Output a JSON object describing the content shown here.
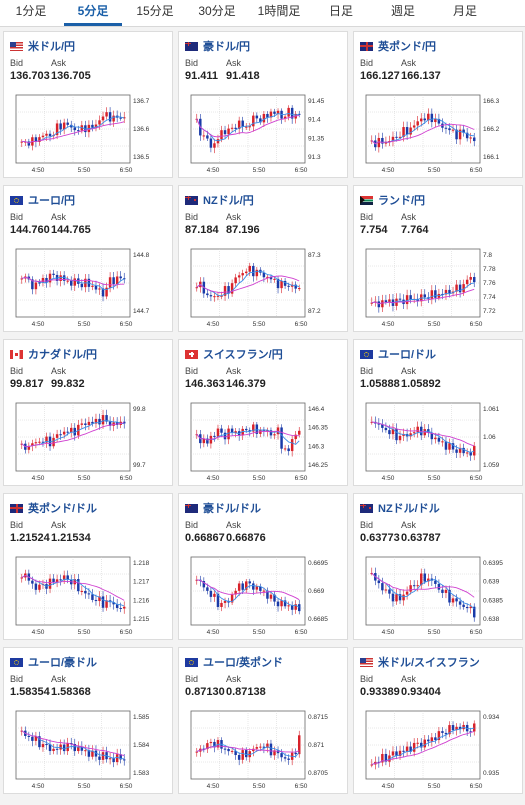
{
  "tabs": [
    {
      "label": "1分足",
      "active": false
    },
    {
      "label": "5分足",
      "active": true
    },
    {
      "label": "15分足",
      "active": false
    },
    {
      "label": "30分足",
      "active": false
    },
    {
      "label": "1時間足",
      "active": false
    },
    {
      "label": "日足",
      "active": false
    },
    {
      "label": "週足",
      "active": false
    },
    {
      "label": "月足",
      "active": false
    }
  ],
  "labels": {
    "bid": "Bid",
    "ask": "Ask"
  },
  "colors": {
    "tab_active": "#1a5fa8",
    "pair_text": "#1f4e96",
    "candle_up": "#d8222a",
    "candle_down": "#1a3aa8",
    "ma_short": "#3a8ee8",
    "ma_long": "#d040d0"
  },
  "cards": [
    {
      "pair": "米ドル/円",
      "flag": "us",
      "bid": "136.703",
      "ask": "136.705",
      "xticks": [
        "4:50",
        "5:50",
        "6:50"
      ],
      "yticks": [
        "136.7",
        "136.6",
        "136.5"
      ],
      "chart_data": {
        "type": "candlestick",
        "trend": [
          0.25,
          0.3,
          0.28,
          0.35,
          0.4,
          0.38,
          0.45,
          0.55,
          0.6,
          0.52,
          0.5,
          0.48,
          0.55,
          0.5,
          0.62,
          0.7,
          0.75,
          0.65,
          0.72,
          0.68
        ],
        "ylim": [
          136.45,
          136.75
        ]
      }
    },
    {
      "pair": "豪ドル/円",
      "flag": "au",
      "bid": "91.411",
      "ask": "91.418",
      "xticks": [
        "4:50",
        "5:50",
        "6:50"
      ],
      "yticks": [
        "91.45",
        "91.4",
        "91.35",
        "91.3"
      ],
      "chart_data": {
        "type": "candlestick",
        "trend": [
          0.6,
          0.4,
          0.3,
          0.2,
          0.35,
          0.5,
          0.45,
          0.55,
          0.6,
          0.5,
          0.62,
          0.7,
          0.65,
          0.72,
          0.8,
          0.75,
          0.7,
          0.78,
          0.72,
          0.75
        ],
        "ylim": [
          91.28,
          91.47
        ]
      }
    },
    {
      "pair": "英ポンド/円",
      "flag": "gb",
      "bid": "166.127",
      "ask": "166.137",
      "xticks": [
        "4:50",
        "5:50",
        "6:50"
      ],
      "yticks": [
        "166.3",
        "166.2",
        "166.1"
      ],
      "chart_data": {
        "type": "candlestick",
        "trend": [
          0.3,
          0.25,
          0.3,
          0.28,
          0.35,
          0.4,
          0.45,
          0.5,
          0.55,
          0.7,
          0.65,
          0.72,
          0.6,
          0.55,
          0.5,
          0.45,
          0.4,
          0.45,
          0.35,
          0.3
        ],
        "ylim": [
          166.05,
          166.35
        ]
      }
    },
    {
      "pair": "ユーロ/円",
      "flag": "eu",
      "bid": "144.760",
      "ask": "144.765",
      "xticks": [
        "4:50",
        "5:50",
        "6:50"
      ],
      "yticks": [
        "144.8",
        "144.7"
      ],
      "chart_data": {
        "type": "candlestick",
        "trend": [
          0.65,
          0.55,
          0.45,
          0.5,
          0.55,
          0.6,
          0.62,
          0.58,
          0.55,
          0.5,
          0.52,
          0.48,
          0.5,
          0.45,
          0.4,
          0.3,
          0.5,
          0.55,
          0.6,
          0.55
        ],
        "ylim": [
          144.62,
          144.84
        ]
      }
    },
    {
      "pair": "NZドル/円",
      "flag": "nz",
      "bid": "87.184",
      "ask": "87.196",
      "xticks": [
        "4:50",
        "5:50",
        "6:50"
      ],
      "yticks": [
        "87.3",
        "87.2"
      ],
      "chart_data": {
        "type": "candlestick",
        "trend": [
          0.5,
          0.4,
          0.3,
          0.25,
          0.3,
          0.35,
          0.4,
          0.55,
          0.65,
          0.7,
          0.72,
          0.68,
          0.65,
          0.6,
          0.55,
          0.5,
          0.45,
          0.48,
          0.42,
          0.4
        ],
        "ylim": [
          87.08,
          87.33
        ]
      }
    },
    {
      "pair": "ランド/円",
      "flag": "za",
      "bid": "7.754",
      "ask": "7.764",
      "xticks": [
        "4:50",
        "5:50",
        "6:50"
      ],
      "yticks": [
        "7.8",
        "7.78",
        "7.76",
        "7.74",
        "7.72"
      ],
      "chart_data": {
        "type": "candlestick",
        "trend": [
          0.15,
          0.15,
          0.18,
          0.2,
          0.18,
          0.2,
          0.22,
          0.25,
          0.22,
          0.25,
          0.28,
          0.3,
          0.3,
          0.32,
          0.35,
          0.38,
          0.4,
          0.45,
          0.6,
          0.55
        ],
        "ylim": [
          7.7,
          7.81
        ]
      }
    },
    {
      "pair": "カナダドル/円",
      "flag": "ca",
      "bid": "99.817",
      "ask": "99.832",
      "xticks": [
        "4:50",
        "5:50",
        "6:50"
      ],
      "yticks": [
        "99.8",
        "99.7"
      ],
      "chart_data": {
        "type": "candlestick",
        "trend": [
          0.3,
          0.35,
          0.38,
          0.42,
          0.45,
          0.4,
          0.48,
          0.55,
          0.6,
          0.58,
          0.62,
          0.7,
          0.75,
          0.72,
          0.78,
          0.8,
          0.75,
          0.7,
          0.72,
          0.78
        ],
        "ylim": [
          99.6,
          99.86
        ]
      }
    },
    {
      "pair": "スイスフラン/円",
      "flag": "ch",
      "bid": "146.363",
      "ask": "146.379",
      "xticks": [
        "4:50",
        "5:50",
        "6:50"
      ],
      "yticks": [
        "146.4",
        "146.35",
        "146.3",
        "146.25"
      ],
      "chart_data": {
        "type": "candlestick",
        "trend": [
          0.5,
          0.45,
          0.4,
          0.55,
          0.6,
          0.52,
          0.58,
          0.6,
          0.55,
          0.62,
          0.65,
          0.6,
          0.62,
          0.58,
          0.55,
          0.6,
          0.3,
          0.25,
          0.55,
          0.6
        ],
        "ylim": [
          146.22,
          146.43
        ]
      }
    },
    {
      "pair": "ユーロ/ドル",
      "flag": "eu",
      "bid": "1.05888",
      "ask": "1.05892",
      "xticks": [
        "4:50",
        "5:50",
        "6:50"
      ],
      "yticks": [
        "1.061",
        "1.06",
        "1.059"
      ],
      "chart_data": {
        "type": "candlestick",
        "trend": [
          0.8,
          0.7,
          0.65,
          0.6,
          0.55,
          0.5,
          0.52,
          0.55,
          0.6,
          0.62,
          0.58,
          0.52,
          0.45,
          0.4,
          0.35,
          0.3,
          0.28,
          0.25,
          0.22,
          0.28
        ],
        "ylim": [
          1.0582,
          1.0614
        ]
      }
    },
    {
      "pair": "英ポンド/ドル",
      "flag": "gb",
      "bid": "1.21524",
      "ask": "1.21534",
      "xticks": [
        "4:50",
        "5:50",
        "6:50"
      ],
      "yticks": [
        "1.218",
        "1.217",
        "1.216",
        "1.215"
      ],
      "chart_data": {
        "type": "candlestick",
        "trend": [
          0.8,
          0.72,
          0.6,
          0.55,
          0.6,
          0.62,
          0.68,
          0.7,
          0.72,
          0.68,
          0.6,
          0.5,
          0.45,
          0.38,
          0.35,
          0.3,
          0.32,
          0.28,
          0.22,
          0.18
        ],
        "ylim": [
          1.2145,
          1.2185
        ]
      }
    },
    {
      "pair": "豪ドル/ドル",
      "flag": "au",
      "bid": "0.66867",
      "ask": "0.66876",
      "xticks": [
        "4:50",
        "5:50",
        "6:50"
      ],
      "yticks": [
        "0.6695",
        "0.669",
        "0.6685"
      ],
      "chart_data": {
        "type": "candlestick",
        "trend": [
          0.7,
          0.6,
          0.5,
          0.4,
          0.3,
          0.28,
          0.35,
          0.5,
          0.58,
          0.62,
          0.6,
          0.55,
          0.5,
          0.45,
          0.35,
          0.3,
          0.28,
          0.25,
          0.22,
          0.2
        ],
        "ylim": [
          0.6682,
          0.6698
        ]
      }
    },
    {
      "pair": "NZドル/ドル",
      "flag": "nz",
      "bid": "0.63773",
      "ask": "0.63787",
      "xticks": [
        "4:50",
        "5:50",
        "6:50"
      ],
      "yticks": [
        "0.6395",
        "0.639",
        "0.6385",
        "0.638"
      ],
      "chart_data": {
        "type": "candlestick",
        "trend": [
          0.75,
          0.65,
          0.55,
          0.45,
          0.4,
          0.35,
          0.45,
          0.55,
          0.6,
          0.7,
          0.72,
          0.68,
          0.58,
          0.5,
          0.42,
          0.35,
          0.3,
          0.25,
          0.2,
          0.15
        ],
        "ylim": [
          0.6376,
          0.6398
        ]
      }
    },
    {
      "pair": "ユーロ/豪ドル",
      "flag": "eu",
      "bid": "1.58354",
      "ask": "1.58368",
      "xticks": [
        "4:50",
        "5:50",
        "6:50"
      ],
      "yticks": [
        "1.585",
        "1.584",
        "1.583"
      ],
      "chart_data": {
        "type": "candlestick",
        "trend": [
          0.7,
          0.65,
          0.6,
          0.55,
          0.5,
          0.45,
          0.42,
          0.45,
          0.48,
          0.5,
          0.45,
          0.42,
          0.38,
          0.35,
          0.3,
          0.32,
          0.28,
          0.25,
          0.3,
          0.28
        ],
        "ylim": [
          1.5825,
          1.5858
        ]
      }
    },
    {
      "pair": "ユーロ/英ポンド",
      "flag": "eu",
      "bid": "0.87130",
      "ask": "0.87138",
      "xticks": [
        "4:50",
        "5:50",
        "6:50"
      ],
      "yticks": [
        "0.8715",
        "0.871",
        "0.8705"
      ],
      "chart_data": {
        "type": "candlestick",
        "trend": [
          0.4,
          0.45,
          0.5,
          0.55,
          0.5,
          0.45,
          0.4,
          0.35,
          0.3,
          0.35,
          0.4,
          0.45,
          0.5,
          0.45,
          0.4,
          0.35,
          0.3,
          0.25,
          0.35,
          0.6
        ],
        "ylim": [
          0.8702,
          0.8718
        ]
      }
    },
    {
      "pair": "米ドル/スイスフラン",
      "flag": "us",
      "bid": "0.93389",
      "ask": "0.93404",
      "xticks": [
        "4:50",
        "5:50",
        "6:50"
      ],
      "yticks": [
        "0.934",
        "0.935"
      ],
      "chart_data": {
        "type": "candlestick",
        "trend": [
          0.2,
          0.22,
          0.28,
          0.3,
          0.35,
          0.38,
          0.4,
          0.45,
          0.5,
          0.52,
          0.55,
          0.6,
          0.65,
          0.7,
          0.75,
          0.78,
          0.8,
          0.78,
          0.75,
          0.78
        ],
        "ylim": [
          0.9328,
          0.9344
        ]
      }
    }
  ]
}
